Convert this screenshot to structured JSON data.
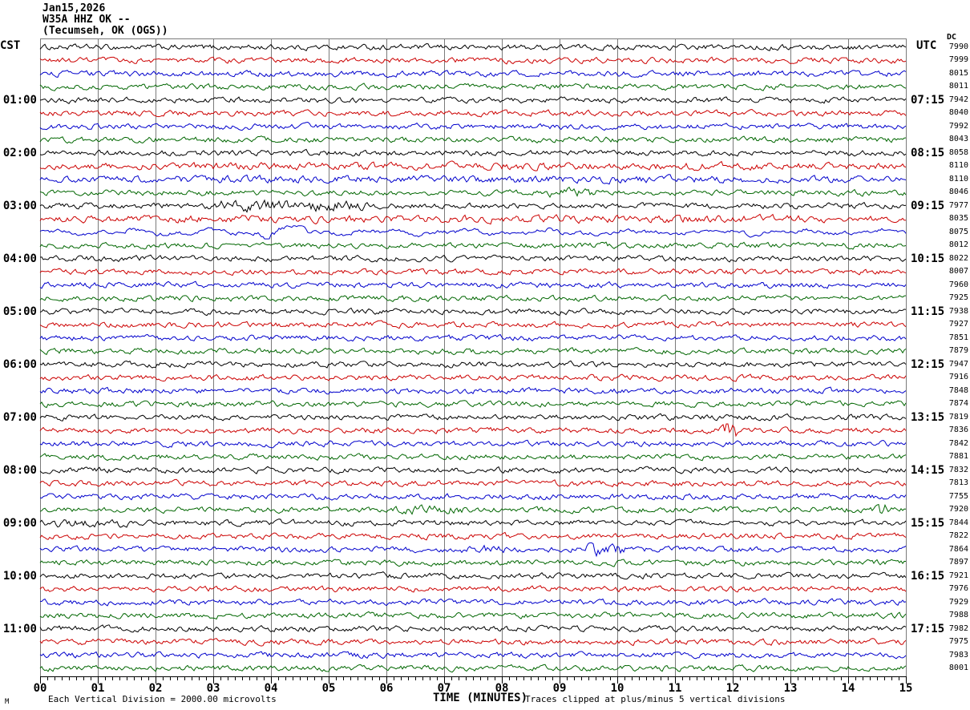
{
  "title": {
    "date": "Jan15,2026",
    "station": "W35A HHZ OK --",
    "location": "(Tecumseh, OK (OGS))"
  },
  "left_axis_label": "CST",
  "right_axis_label": "UTC",
  "dc_header": "DC",
  "x_axis": {
    "label": "TIME (MINUTES)",
    "ticks": [
      "00",
      "01",
      "02",
      "03",
      "04",
      "05",
      "06",
      "07",
      "08",
      "09",
      "10",
      "11",
      "12",
      "13",
      "14",
      "15"
    ],
    "minutes_per_line": 15,
    "minor_ticks_per_minute": 8
  },
  "footer": {
    "scale_note": "Each Vertical Division = 2000.00 microvolts",
    "clip_note": "Traces clipped at plus/minus 5 vertical divisions",
    "watermark": "M"
  },
  "chart_data": {
    "type": "line",
    "title": "W35A HHZ OK -- (Tecumseh, OK (OGS)) Jan15,2026 helicorder",
    "xlabel": "TIME (MINUTES)",
    "x_range": [
      0,
      15
    ],
    "grid": "vertical-every-minute",
    "grid_color": "#7a7a7a",
    "trace_colors": [
      "#000000",
      "#cc0000",
      "#0000cc",
      "#006600"
    ],
    "rows": [
      {
        "cst": "",
        "utc": "",
        "dc": 7990
      },
      {
        "cst": "",
        "utc": "",
        "dc": 7999
      },
      {
        "cst": "",
        "utc": "",
        "dc": 8015
      },
      {
        "cst": "",
        "utc": "",
        "dc": 8011
      },
      {
        "cst": "01:00",
        "utc": "07:15",
        "dc": 7942
      },
      {
        "cst": "",
        "utc": "",
        "dc": 8040
      },
      {
        "cst": "",
        "utc": "",
        "dc": 7992
      },
      {
        "cst": "",
        "utc": "",
        "dc": 8043
      },
      {
        "cst": "02:00",
        "utc": "08:15",
        "dc": 8058
      },
      {
        "cst": "",
        "utc": "",
        "dc": 8110
      },
      {
        "cst": "",
        "utc": "",
        "dc": 8110
      },
      {
        "cst": "",
        "utc": "",
        "dc": 8046
      },
      {
        "cst": "03:00",
        "utc": "09:15",
        "dc": 7977
      },
      {
        "cst": "",
        "utc": "",
        "dc": 8035
      },
      {
        "cst": "",
        "utc": "",
        "dc": 8075
      },
      {
        "cst": "",
        "utc": "",
        "dc": 8012
      },
      {
        "cst": "04:00",
        "utc": "10:15",
        "dc": 8022
      },
      {
        "cst": "",
        "utc": "",
        "dc": 8007
      },
      {
        "cst": "",
        "utc": "",
        "dc": 7960
      },
      {
        "cst": "",
        "utc": "",
        "dc": 7925
      },
      {
        "cst": "05:00",
        "utc": "11:15",
        "dc": 7938
      },
      {
        "cst": "",
        "utc": "",
        "dc": 7927
      },
      {
        "cst": "",
        "utc": "",
        "dc": 7851
      },
      {
        "cst": "",
        "utc": "",
        "dc": 7879
      },
      {
        "cst": "06:00",
        "utc": "12:15",
        "dc": 7947
      },
      {
        "cst": "",
        "utc": "",
        "dc": 7916
      },
      {
        "cst": "",
        "utc": "",
        "dc": 7848
      },
      {
        "cst": "",
        "utc": "",
        "dc": 7874
      },
      {
        "cst": "07:00",
        "utc": "13:15",
        "dc": 7819
      },
      {
        "cst": "",
        "utc": "",
        "dc": 7836
      },
      {
        "cst": "",
        "utc": "",
        "dc": 7842
      },
      {
        "cst": "",
        "utc": "",
        "dc": 7881
      },
      {
        "cst": "08:00",
        "utc": "14:15",
        "dc": 7832
      },
      {
        "cst": "",
        "utc": "",
        "dc": 7813
      },
      {
        "cst": "",
        "utc": "",
        "dc": 7755
      },
      {
        "cst": "",
        "utc": "",
        "dc": 7920
      },
      {
        "cst": "09:00",
        "utc": "15:15",
        "dc": 7844
      },
      {
        "cst": "",
        "utc": "",
        "dc": 7822
      },
      {
        "cst": "",
        "utc": "",
        "dc": 7864
      },
      {
        "cst": "",
        "utc": "",
        "dc": 7897
      },
      {
        "cst": "10:00",
        "utc": "16:15",
        "dc": 7921
      },
      {
        "cst": "",
        "utc": "",
        "dc": 7976
      },
      {
        "cst": "",
        "utc": "",
        "dc": 7929
      },
      {
        "cst": "",
        "utc": "",
        "dc": 7988
      },
      {
        "cst": "11:00",
        "utc": "17:15",
        "dc": 7982
      },
      {
        "cst": "",
        "utc": "",
        "dc": 7975
      },
      {
        "cst": "",
        "utc": "",
        "dc": 7983
      },
      {
        "cst": "",
        "utc": "",
        "dc": 8001
      }
    ],
    "events": [
      {
        "row": 9,
        "kind": "elevated",
        "start_min": 0,
        "end_min": 15,
        "amp": 1.3
      },
      {
        "row": 10,
        "kind": "elevated",
        "start_min": 0,
        "end_min": 15,
        "amp": 1.3
      },
      {
        "row": 11,
        "kind": "burst",
        "start_min": 8.7,
        "end_min": 9.7,
        "amp": 1.8
      },
      {
        "row": 12,
        "kind": "burst",
        "start_min": 2.7,
        "end_min": 5.8,
        "amp": 2.1
      },
      {
        "row": 13,
        "kind": "elevated",
        "start_min": 0,
        "end_min": 15,
        "amp": 1.35
      },
      {
        "row": 14,
        "kind": "slow",
        "start_min": 0,
        "end_min": 15,
        "amp": 1.5
      },
      {
        "row": 14,
        "kind": "burst",
        "start_min": 3.8,
        "end_min": 4.7,
        "amp": 2.3
      },
      {
        "row": 29,
        "kind": "spike",
        "start_min": 11.75,
        "end_min": 12.1,
        "amp": 4.5
      },
      {
        "row": 35,
        "kind": "burst",
        "start_min": 6.1,
        "end_min": 7.4,
        "amp": 1.6
      },
      {
        "row": 35,
        "kind": "spike",
        "start_min": 14.45,
        "end_min": 14.7,
        "amp": 3.0
      },
      {
        "row": 36,
        "kind": "burst",
        "start_min": 0,
        "end_min": 1.6,
        "amp": 1.5
      },
      {
        "row": 38,
        "kind": "burst",
        "start_min": 7.2,
        "end_min": 8.1,
        "amp": 1.7
      },
      {
        "row": 38,
        "kind": "burst",
        "start_min": 9.4,
        "end_min": 10.15,
        "amp": 2.8
      }
    ]
  }
}
